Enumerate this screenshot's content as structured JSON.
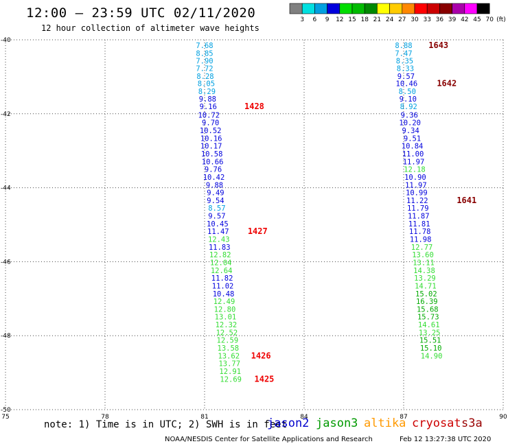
{
  "header": {
    "title": "12:00 – 23:59 UTC 02/11/2020",
    "subtitle": "12 hour collection of altimeter wave heights"
  },
  "footer": {
    "note": "note: 1) Time is in UTC; 2) SWH is in feet",
    "credit": "NOAA/NESDIS Center for Satellite Applications and Research",
    "timestamp": "Feb 12 13:27:38 UTC 2020"
  },
  "satellites": [
    {
      "name": "jason2",
      "color": "#0000cc"
    },
    {
      "name": "jason3",
      "color": "#009900"
    },
    {
      "name": "altika",
      "color": "#ff9900"
    },
    {
      "name": "cryosat",
      "color": "#cc0000"
    },
    {
      "name": "s3a",
      "color": "#990000"
    }
  ],
  "chart_data": {
    "type": "scatter",
    "xaxis": {
      "ticks": [
        "75",
        "78",
        "81",
        "84",
        "87",
        "90"
      ],
      "range": [
        75,
        90
      ]
    },
    "yaxis": {
      "ticks": [
        "-40",
        "-42",
        "-44",
        "-46",
        "-48",
        "-50"
      ],
      "range": [
        -50,
        -40
      ]
    },
    "grid": true,
    "colorbar": {
      "unit": "(ft)",
      "labels": [
        "3",
        "6",
        "9",
        "12",
        "15",
        "18",
        "21",
        "24",
        "27",
        "30",
        "33",
        "36",
        "39",
        "42",
        "45",
        "70"
      ],
      "colors": [
        "#808080",
        "#00e0e0",
        "#00a0e0",
        "#0000dd",
        "#00dd00",
        "#00bb00",
        "#008800",
        "#ffff00",
        "#ffcc00",
        "#ff8800",
        "#ff0000",
        "#cc0000",
        "#880000",
        "#aa00aa",
        "#ff00ff",
        "#000000"
      ]
    },
    "series": [
      {
        "track": "west",
        "points": [
          {
            "x": 81.0,
            "y": -40.15,
            "v": "7.68"
          },
          {
            "x": 81.0,
            "y": -40.36,
            "v": "8.85"
          },
          {
            "x": 81.0,
            "y": -40.57,
            "v": "7.90"
          },
          {
            "x": 81.0,
            "y": -40.77,
            "v": "7.72"
          },
          {
            "x": 81.02,
            "y": -40.98,
            "v": "8.28"
          },
          {
            "x": 81.05,
            "y": -41.18,
            "v": "8.05"
          },
          {
            "x": 81.07,
            "y": -41.39,
            "v": "8.29"
          },
          {
            "x": 81.09,
            "y": -41.6,
            "v": "9.88"
          },
          {
            "x": 81.11,
            "y": -41.8,
            "v": "9.16"
          },
          {
            "x": 81.13,
            "y": -42.03,
            "v": "10.72"
          },
          {
            "x": 81.18,
            "y": -42.24,
            "v": "9.70"
          },
          {
            "x": 81.18,
            "y": -42.45,
            "v": "10.52"
          },
          {
            "x": 81.2,
            "y": -42.66,
            "v": "10.16"
          },
          {
            "x": 81.2,
            "y": -42.87,
            "v": "10.17"
          },
          {
            "x": 81.22,
            "y": -43.08,
            "v": "10.58"
          },
          {
            "x": 81.24,
            "y": -43.29,
            "v": "10.66"
          },
          {
            "x": 81.26,
            "y": -43.5,
            "v": "9.76"
          },
          {
            "x": 81.28,
            "y": -43.71,
            "v": "10.42"
          },
          {
            "x": 81.3,
            "y": -43.92,
            "v": "9.88"
          },
          {
            "x": 81.33,
            "y": -44.13,
            "v": "9.49"
          },
          {
            "x": 81.33,
            "y": -44.34,
            "v": "9.54"
          },
          {
            "x": 81.37,
            "y": -44.55,
            "v": "8.57"
          },
          {
            "x": 81.37,
            "y": -44.76,
            "v": "9.57"
          },
          {
            "x": 81.39,
            "y": -44.97,
            "v": "10.45"
          },
          {
            "x": 81.41,
            "y": -45.18,
            "v": "11.47"
          },
          {
            "x": 81.43,
            "y": -45.39,
            "v": "12.43"
          },
          {
            "x": 81.45,
            "y": -45.6,
            "v": "11.83"
          },
          {
            "x": 81.47,
            "y": -45.81,
            "v": "12.82"
          },
          {
            "x": 81.49,
            "y": -46.02,
            "v": "12.04"
          },
          {
            "x": 81.51,
            "y": -46.23,
            "v": "12.64"
          },
          {
            "x": 81.53,
            "y": -46.44,
            "v": "11.82"
          },
          {
            "x": 81.55,
            "y": -46.65,
            "v": "11.02"
          },
          {
            "x": 81.57,
            "y": -46.86,
            "v": "10.48"
          },
          {
            "x": 81.59,
            "y": -47.07,
            "v": "12.49"
          },
          {
            "x": 81.61,
            "y": -47.28,
            "v": "12.80"
          },
          {
            "x": 81.63,
            "y": -47.49,
            "v": "13.01"
          },
          {
            "x": 81.65,
            "y": -47.7,
            "v": "12.32"
          },
          {
            "x": 81.67,
            "y": -47.91,
            "v": "12.52"
          },
          {
            "x": 81.69,
            "y": -48.12,
            "v": "12.59"
          },
          {
            "x": 81.71,
            "y": -48.33,
            "v": "13.58"
          },
          {
            "x": 81.73,
            "y": -48.54,
            "v": "13.62"
          },
          {
            "x": 81.75,
            "y": -48.75,
            "v": "13.77"
          },
          {
            "x": 81.77,
            "y": -48.96,
            "v": "12.91"
          },
          {
            "x": 81.79,
            "y": -49.17,
            "v": "12.69"
          }
        ]
      },
      {
        "track": "east",
        "points": [
          {
            "x": 87.0,
            "y": -40.15,
            "v": "8.88"
          },
          {
            "x": 87.0,
            "y": -40.36,
            "v": "7.47"
          },
          {
            "x": 87.03,
            "y": -40.57,
            "v": "8.35"
          },
          {
            "x": 87.05,
            "y": -40.77,
            "v": "8.33"
          },
          {
            "x": 87.07,
            "y": -40.98,
            "v": "9.57"
          },
          {
            "x": 87.09,
            "y": -41.18,
            "v": "10.46"
          },
          {
            "x": 87.11,
            "y": -41.39,
            "v": "8.50"
          },
          {
            "x": 87.13,
            "y": -41.6,
            "v": "9.10"
          },
          {
            "x": 87.15,
            "y": -41.8,
            "v": "8.92"
          },
          {
            "x": 87.17,
            "y": -42.03,
            "v": "9.36"
          },
          {
            "x": 87.19,
            "y": -42.24,
            "v": "10.20"
          },
          {
            "x": 87.21,
            "y": -42.45,
            "v": "9.34"
          },
          {
            "x": 87.26,
            "y": -42.66,
            "v": "9.51"
          },
          {
            "x": 87.26,
            "y": -42.87,
            "v": "10.84"
          },
          {
            "x": 87.28,
            "y": -43.08,
            "v": "11.00"
          },
          {
            "x": 87.3,
            "y": -43.29,
            "v": "11.97"
          },
          {
            "x": 87.33,
            "y": -43.5,
            "v": "12.18"
          },
          {
            "x": 87.35,
            "y": -43.71,
            "v": "10.90"
          },
          {
            "x": 87.37,
            "y": -43.92,
            "v": "11.97"
          },
          {
            "x": 87.39,
            "y": -44.13,
            "v": "10.99"
          },
          {
            "x": 87.41,
            "y": -44.34,
            "v": "11.22"
          },
          {
            "x": 87.43,
            "y": -44.55,
            "v": "11.79"
          },
          {
            "x": 87.45,
            "y": -44.76,
            "v": "11.87"
          },
          {
            "x": 87.47,
            "y": -44.97,
            "v": "11.81"
          },
          {
            "x": 87.49,
            "y": -45.18,
            "v": "11.78"
          },
          {
            "x": 87.51,
            "y": -45.39,
            "v": "11.98"
          },
          {
            "x": 87.55,
            "y": -45.6,
            "v": "12.77"
          },
          {
            "x": 87.58,
            "y": -45.81,
            "v": "13.60"
          },
          {
            "x": 87.6,
            "y": -46.02,
            "v": "13.11"
          },
          {
            "x": 87.62,
            "y": -46.23,
            "v": "14.38"
          },
          {
            "x": 87.64,
            "y": -46.44,
            "v": "13.29"
          },
          {
            "x": 87.66,
            "y": -46.65,
            "v": "14.71"
          },
          {
            "x": 87.68,
            "y": -46.86,
            "v": "15.02"
          },
          {
            "x": 87.7,
            "y": -47.07,
            "v": "16.39"
          },
          {
            "x": 87.72,
            "y": -47.28,
            "v": "15.68"
          },
          {
            "x": 87.74,
            "y": -47.49,
            "v": "15.73"
          },
          {
            "x": 87.76,
            "y": -47.7,
            "v": "14.61"
          },
          {
            "x": 87.78,
            "y": -47.91,
            "v": "13.25"
          },
          {
            "x": 87.8,
            "y": -48.12,
            "v": "15.51"
          },
          {
            "x": 87.82,
            "y": -48.33,
            "v": "15.10"
          },
          {
            "x": 87.84,
            "y": -48.54,
            "v": "14.90"
          }
        ]
      }
    ],
    "time_labels": [
      {
        "x": 82.2,
        "y": -41.8,
        "text": "1428"
      },
      {
        "x": 82.3,
        "y": -45.18,
        "text": "1427"
      },
      {
        "x": 82.4,
        "y": -48.54,
        "text": "1426"
      },
      {
        "x": 82.5,
        "y": -49.17,
        "text": "1425"
      },
      {
        "x": 87.75,
        "y": -40.15,
        "text": "1643"
      },
      {
        "x": 88.0,
        "y": -41.18,
        "text": "1642"
      },
      {
        "x": 88.6,
        "y": -44.34,
        "text": "1641"
      }
    ]
  }
}
